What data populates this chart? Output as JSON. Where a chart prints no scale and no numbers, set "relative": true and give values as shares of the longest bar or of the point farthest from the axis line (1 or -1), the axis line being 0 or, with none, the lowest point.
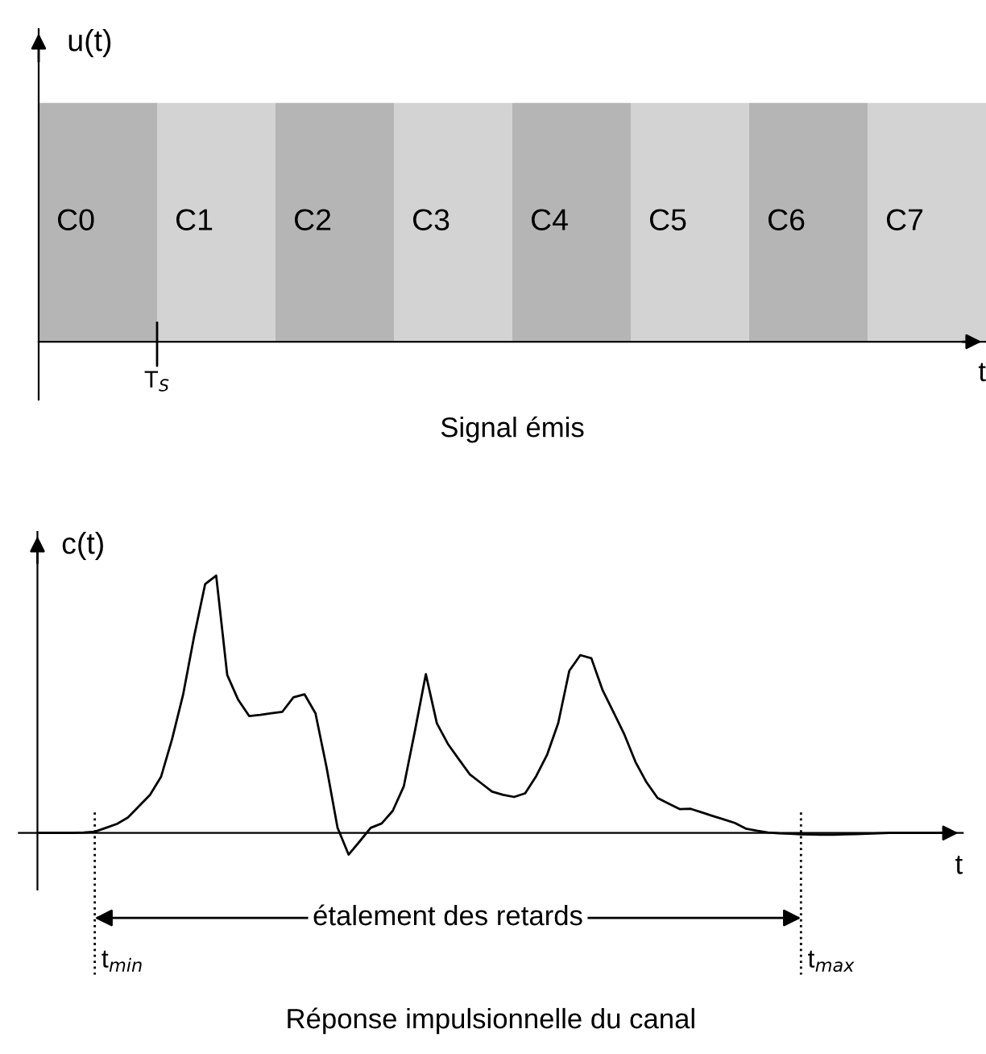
{
  "chart_data": [
    {
      "type": "bar",
      "relative": true,
      "ylabel": "u(t)",
      "xlabel": "t",
      "categories": [
        "C0",
        "C1",
        "C2",
        "C3",
        "C4",
        "C5",
        "C6",
        "C7"
      ],
      "values": [
        1,
        1,
        1,
        1,
        1,
        1,
        1,
        1
      ],
      "colors": [
        "#b5b5b5",
        "#d3d3d3",
        "#b5b5b5",
        "#d3d3d3",
        "#b5b5b5",
        "#d3d3d3",
        "#b5b5b5",
        "#d3d3d3"
      ],
      "annotations": [
        "T$_{S}$",
        "Signal émis"
      ]
    },
    {
      "type": "line",
      "relative": true,
      "ylabel": "c(t)",
      "xlabel": "t",
      "color": "#000000",
      "categories": [
        null,
        null,
        null,
        null,
        null,
        null,
        null,
        null,
        null,
        null,
        null,
        null,
        null,
        null,
        null,
        null,
        null,
        null,
        null,
        null,
        null,
        null,
        null,
        null,
        null,
        null,
        null,
        null,
        null,
        null,
        null,
        null,
        null,
        null,
        null,
        null,
        null,
        null,
        null,
        null,
        null,
        null,
        null,
        null,
        null,
        null,
        null,
        null,
        null,
        null,
        null,
        null,
        null,
        null,
        null,
        null,
        null,
        null,
        null,
        null,
        null,
        null,
        null,
        null,
        null,
        null,
        null,
        null,
        null,
        null,
        null,
        null,
        null,
        null,
        null,
        null,
        null,
        null,
        null,
        null,
        null,
        null,
        null
      ],
      "values": [
        0,
        0,
        0,
        0,
        0.002,
        0.005,
        0.02,
        0.035,
        0.06,
        0.104,
        0.148,
        0.218,
        0.364,
        0.537,
        0.764,
        0.967,
        1,
        0.614,
        0.517,
        0.454,
        0.459,
        0.465,
        0.471,
        0.527,
        0.539,
        0.465,
        0.256,
        0.02,
        -0.084,
        -0.033,
        0.02,
        0.037,
        0.086,
        0.181,
        0.394,
        0.617,
        0.426,
        0.346,
        0.286,
        0.227,
        0.194,
        0.161,
        0.148,
        0.14,
        0.154,
        0.221,
        0.305,
        0.427,
        0.63,
        0.691,
        0.679,
        0.557,
        0.47,
        0.382,
        0.276,
        0.197,
        0.136,
        0.114,
        0.093,
        0.094,
        0.08,
        0.066,
        0.053,
        0.039,
        0.017,
        0.009,
        0.002,
        -0.001,
        -0.003,
        -0.005,
        -0.006,
        -0.007,
        -0.007,
        -0.005,
        -0.004,
        -0.003,
        -0.001,
        0,
        0,
        0,
        0,
        0,
        0
      ],
      "annotations": [
        "étalement des retards",
        "t$_{min}$",
        "t$_{max}$",
        "Réponse impulsionnelle du canal"
      ]
    }
  ]
}
